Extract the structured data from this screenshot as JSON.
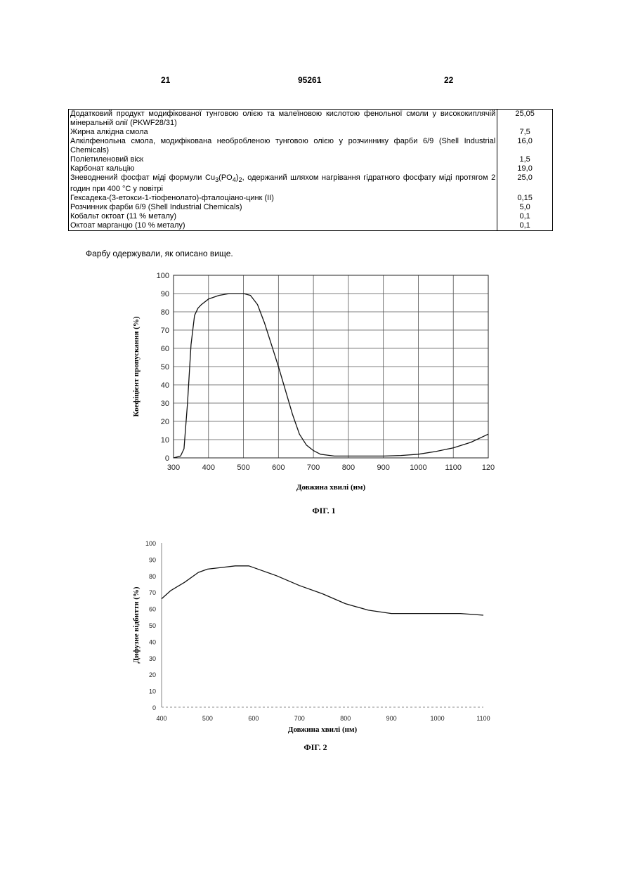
{
  "header": {
    "left": "21",
    "center": "95261",
    "right": "22"
  },
  "composition": [
    {
      "name": "Додатковий продукт модифікованої тунговою олією та малеїновою кислотою фенольної смоли у висококи­плячій мінеральній олії (PKWF28/31)",
      "value": "25,05"
    },
    {
      "name": "Жирна алкідна смола",
      "value": "7,5"
    },
    {
      "name": "Алкілфенольна смола, модифікована необробленою тунговою олією у розчиннику фарби 6/9 (Shell Industrial Chemicals)",
      "value": "16,0"
    },
    {
      "name": "Поліетиленовий віск",
      "value": "1,5"
    },
    {
      "name": "Карбонат кальцію",
      "value": "19,0"
    },
    {
      "name_pre": "Зневоднений фосфат міді формули Cu",
      "sub1": "3",
      "name_mid": "(PO",
      "sub2": "4",
      "name_mid2": ")",
      "sub3": "2",
      "name_post": ", одержаний шляхом нагрівання гідратного фосфату міді протягом 2 годин при 400 °C у повітрі",
      "value": "25,0"
    },
    {
      "name": "Гексадека-(3-етокси-1-тіофенолато)-фталоціано-цинк (II)",
      "value": "0,15"
    },
    {
      "name": "Розчинник фарби 6/9 (Shell Industrial Chemicals)",
      "value": "5,0"
    },
    {
      "name": "Кобальт октоат (11 % металу)",
      "value": "0,1"
    },
    {
      "name": "Октоат марганцю (10 % металу)",
      "value": "0,1"
    }
  ],
  "note": "Фарбу одержували, як описано вище.",
  "chart_data": [
    {
      "type": "line",
      "title": "ФІГ. 1",
      "xlabel": "Довжина хвилі (нм)",
      "ylabel": "Коефіцієнт пропускання (%)",
      "xlim": [
        300,
        1200
      ],
      "ylim": [
        0,
        100
      ],
      "x_ticks": [
        "300",
        "400",
        "500",
        "600",
        "700",
        "800",
        "900",
        "1000",
        "1100",
        "120"
      ],
      "y_ticks": [
        "0",
        "10",
        "20",
        "30",
        "40",
        "50",
        "60",
        "70",
        "80",
        "90",
        "100"
      ],
      "grid": true,
      "series": [
        {
          "x": [
            300,
            320,
            330,
            340,
            350,
            360,
            370,
            380,
            400,
            430,
            460,
            500,
            520,
            540,
            560,
            580,
            600,
            620,
            640,
            660,
            680,
            700,
            720,
            740,
            760,
            800,
            850,
            900,
            950,
            1000,
            1050,
            1100,
            1150,
            1200
          ],
          "y": [
            0,
            1,
            5,
            30,
            62,
            78,
            82,
            84,
            87,
            89,
            90,
            90,
            89,
            84,
            74,
            62,
            50,
            37,
            24,
            13,
            7,
            4,
            2,
            1.5,
            1,
            1,
            1,
            1,
            1.3,
            2,
            3.5,
            5.5,
            8.5,
            13
          ]
        }
      ]
    },
    {
      "type": "line",
      "title": "ФІГ. 2",
      "xlabel": "Довжина хвилі (нм)",
      "ylabel": "Дифузне відбиття (%)",
      "xlim": [
        400,
        1100
      ],
      "ylim": [
        0,
        100
      ],
      "x_ticks": [
        "400",
        "500",
        "600",
        "700",
        "800",
        "900",
        "1000",
        "1100"
      ],
      "y_ticks": [
        "0",
        "10",
        "20",
        "30",
        "40",
        "50",
        "60",
        "70",
        "80",
        "90",
        "100"
      ],
      "grid": false,
      "series": [
        {
          "x": [
            400,
            420,
            450,
            480,
            500,
            530,
            560,
            590,
            620,
            650,
            700,
            750,
            800,
            850,
            900,
            950,
            1000,
            1050,
            1100
          ],
          "y": [
            66,
            71,
            76,
            82,
            84,
            85,
            86,
            86,
            83,
            80,
            74,
            69,
            63,
            59,
            57,
            57,
            57,
            57,
            56
          ]
        }
      ]
    }
  ]
}
